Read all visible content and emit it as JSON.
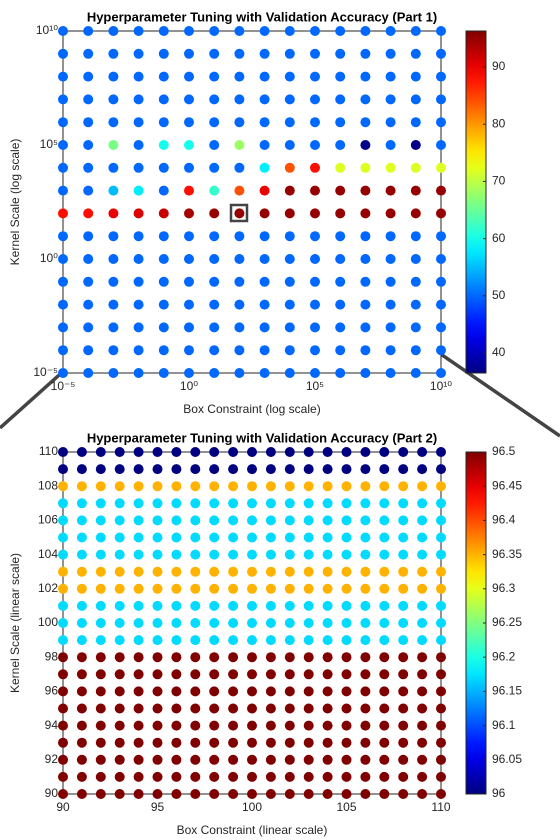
{
  "chart_data": [
    {
      "type": "scatter",
      "title": "Hyperparameter Tuning with Validation Accuracy (Part 1)",
      "xlabel": "Box Constraint (log scale)",
      "ylabel": "Kernel Scale (log scale)",
      "log_scale": true,
      "colormap": "jet",
      "x": [
        1e-05,
        0.0001,
        0.001,
        0.01,
        0.1,
        1,
        10,
        100,
        1000,
        10000,
        100000,
        1000000,
        10000000,
        100000000,
        1000000000,
        10000000000
      ],
      "y": [
        1e-05,
        0.0001,
        0.001,
        0.01,
        0.1,
        1,
        10,
        100,
        1000,
        10000,
        100000,
        1000000,
        10000000,
        100000000,
        1000000000,
        10000000000
      ],
      "values": [
        [
          50,
          50,
          50,
          50,
          50,
          50,
          50,
          50,
          50,
          50,
          50,
          50,
          50,
          50,
          50,
          50
        ],
        [
          50,
          50,
          50,
          50,
          50,
          50,
          50,
          50,
          50,
          50,
          50,
          50,
          50,
          50,
          50,
          50
        ],
        [
          50,
          50,
          50,
          50,
          50,
          50,
          50,
          50,
          50,
          50,
          50,
          50,
          50,
          50,
          50,
          50
        ],
        [
          50,
          50,
          50,
          50,
          50,
          50,
          50,
          50,
          50,
          50,
          50,
          50,
          50,
          50,
          50,
          50
        ],
        [
          50,
          50,
          50,
          50,
          50,
          50,
          50,
          50,
          50,
          50,
          50,
          50,
          50,
          50,
          50,
          50
        ],
        [
          50,
          50,
          50,
          50,
          50,
          50,
          50,
          50,
          50,
          50,
          50,
          50,
          50,
          50,
          50,
          50
        ],
        [
          50,
          50,
          50,
          50,
          50,
          50,
          50,
          50,
          50,
          50,
          50,
          50,
          50,
          50,
          50,
          50
        ],
        [
          88,
          88,
          90,
          91,
          92,
          94,
          95,
          95,
          95,
          95,
          95,
          95,
          95,
          95,
          95,
          95
        ],
        [
          50,
          50,
          55,
          58,
          50,
          88,
          62,
          84,
          90,
          95,
          95,
          95,
          95,
          95,
          95,
          95
        ],
        [
          50,
          50,
          50,
          50,
          50,
          50,
          50,
          50,
          58,
          84,
          88,
          72,
          72,
          72,
          72,
          72
        ],
        [
          50,
          50,
          66,
          50,
          60,
          60,
          50,
          68,
          50,
          50,
          50,
          50,
          37,
          50,
          37,
          50
        ],
        [
          50,
          50,
          50,
          50,
          50,
          50,
          50,
          50,
          50,
          50,
          50,
          50,
          50,
          50,
          50,
          50
        ],
        [
          50,
          50,
          50,
          50,
          50,
          50,
          50,
          50,
          50,
          50,
          50,
          50,
          50,
          50,
          50,
          50
        ],
        [
          50,
          50,
          50,
          50,
          50,
          50,
          50,
          50,
          50,
          50,
          50,
          50,
          50,
          50,
          50,
          50
        ],
        [
          50,
          50,
          50,
          50,
          50,
          50,
          50,
          50,
          50,
          50,
          50,
          50,
          50,
          50,
          50,
          50
        ],
        [
          50,
          50,
          50,
          50,
          50,
          50,
          50,
          50,
          50,
          50,
          50,
          50,
          50,
          50,
          50,
          50
        ]
      ],
      "xlim": [
        1e-05,
        10000000000
      ],
      "ylim": [
        1e-05,
        10000000000
      ],
      "xticks": [
        {
          "value": 1e-05,
          "label": "10⁻⁵"
        },
        {
          "value": 1,
          "label": "10⁰"
        },
        {
          "value": 100000,
          "label": "10⁵"
        },
        {
          "value": 10000000000,
          "label": "10¹⁰"
        }
      ],
      "yticks": [
        {
          "value": 1e-05,
          "label": "10⁻⁵"
        },
        {
          "value": 1,
          "label": "10⁰"
        },
        {
          "value": 100000,
          "label": "10⁵"
        },
        {
          "value": 10000000000,
          "label": "10¹⁰"
        }
      ],
      "clim": [
        36.5,
        96.3
      ],
      "cticks": [
        40,
        50,
        60,
        70,
        80,
        90
      ]
    },
    {
      "type": "scatter",
      "title": "Hyperparameter Tuning with Validation Accuracy (Part 2)",
      "xlabel": "Box Constraint (linear scale)",
      "ylabel": "Kernel Scale (linear scale)",
      "log_scale": false,
      "colormap": "jet",
      "x": [
        90,
        91,
        92,
        93,
        94,
        95,
        96,
        97,
        98,
        99,
        100,
        101,
        102,
        103,
        104,
        105,
        106,
        107,
        108,
        109,
        110
      ],
      "y": [
        90,
        91,
        92,
        93,
        94,
        95,
        96,
        97,
        98,
        99,
        100,
        101,
        102,
        103,
        104,
        105,
        106,
        107,
        108,
        109,
        110
      ],
      "values": [
        [
          96.5,
          96.5,
          96.5,
          96.5,
          96.5,
          96.5,
          96.5,
          96.5,
          96.5,
          96.5,
          96.5,
          96.5,
          96.5,
          96.5,
          96.5,
          96.5,
          96.5,
          96.5,
          96.5,
          96.5,
          96.5
        ],
        [
          96.5,
          96.5,
          96.5,
          96.5,
          96.5,
          96.5,
          96.5,
          96.5,
          96.5,
          96.5,
          96.5,
          96.5,
          96.5,
          96.5,
          96.5,
          96.5,
          96.5,
          96.5,
          96.5,
          96.5,
          96.5
        ],
        [
          96.5,
          96.5,
          96.5,
          96.5,
          96.5,
          96.5,
          96.5,
          96.5,
          96.5,
          96.5,
          96.5,
          96.5,
          96.5,
          96.5,
          96.5,
          96.5,
          96.5,
          96.5,
          96.5,
          96.5,
          96.5
        ],
        [
          96.5,
          96.5,
          96.5,
          96.5,
          96.5,
          96.5,
          96.5,
          96.5,
          96.5,
          96.5,
          96.5,
          96.5,
          96.5,
          96.5,
          96.5,
          96.5,
          96.5,
          96.5,
          96.5,
          96.5,
          96.5
        ],
        [
          96.5,
          96.5,
          96.5,
          96.5,
          96.5,
          96.5,
          96.5,
          96.5,
          96.5,
          96.5,
          96.5,
          96.5,
          96.5,
          96.5,
          96.5,
          96.5,
          96.5,
          96.5,
          96.5,
          96.5,
          96.5
        ],
        [
          96.5,
          96.5,
          96.5,
          96.5,
          96.5,
          96.5,
          96.5,
          96.5,
          96.5,
          96.5,
          96.5,
          96.5,
          96.5,
          96.5,
          96.5,
          96.5,
          96.5,
          96.5,
          96.5,
          96.5,
          96.5
        ],
        [
          96.5,
          96.5,
          96.5,
          96.5,
          96.5,
          96.5,
          96.5,
          96.5,
          96.5,
          96.5,
          96.5,
          96.5,
          96.5,
          96.5,
          96.5,
          96.5,
          96.5,
          96.5,
          96.5,
          96.5,
          96.5
        ],
        [
          96.5,
          96.5,
          96.5,
          96.5,
          96.5,
          96.5,
          96.5,
          96.5,
          96.5,
          96.5,
          96.5,
          96.5,
          96.5,
          96.5,
          96.5,
          96.5,
          96.5,
          96.5,
          96.5,
          96.5,
          96.5
        ],
        [
          96.5,
          96.5,
          96.5,
          96.5,
          96.5,
          96.5,
          96.5,
          96.5,
          96.5,
          96.5,
          96.5,
          96.5,
          96.5,
          96.5,
          96.5,
          96.5,
          96.5,
          96.5,
          96.5,
          96.5,
          96.5
        ],
        [
          96.17,
          96.17,
          96.17,
          96.17,
          96.17,
          96.17,
          96.17,
          96.17,
          96.17,
          96.17,
          96.17,
          96.17,
          96.17,
          96.17,
          96.17,
          96.17,
          96.17,
          96.17,
          96.17,
          96.17,
          96.17
        ],
        [
          96.17,
          96.17,
          96.17,
          96.17,
          96.17,
          96.17,
          96.17,
          96.17,
          96.17,
          96.17,
          96.17,
          96.17,
          96.17,
          96.17,
          96.17,
          96.17,
          96.17,
          96.17,
          96.17,
          96.17,
          96.17
        ],
        [
          96.17,
          96.17,
          96.17,
          96.17,
          96.17,
          96.17,
          96.17,
          96.17,
          96.17,
          96.17,
          96.17,
          96.17,
          96.17,
          96.17,
          96.17,
          96.17,
          96.17,
          96.17,
          96.17,
          96.17,
          96.17
        ],
        [
          96.35,
          96.35,
          96.35,
          96.35,
          96.35,
          96.35,
          96.35,
          96.35,
          96.35,
          96.35,
          96.35,
          96.35,
          96.35,
          96.35,
          96.35,
          96.35,
          96.35,
          96.35,
          96.35,
          96.35,
          96.35
        ],
        [
          96.35,
          96.35,
          96.35,
          96.35,
          96.35,
          96.35,
          96.35,
          96.35,
          96.35,
          96.35,
          96.35,
          96.35,
          96.35,
          96.35,
          96.35,
          96.35,
          96.35,
          96.35,
          96.35,
          96.35,
          96.35
        ],
        [
          96.17,
          96.17,
          96.17,
          96.17,
          96.17,
          96.17,
          96.17,
          96.17,
          96.17,
          96.17,
          96.17,
          96.17,
          96.17,
          96.17,
          96.17,
          96.17,
          96.17,
          96.17,
          96.17,
          96.17,
          96.17
        ],
        [
          96.17,
          96.17,
          96.17,
          96.17,
          96.17,
          96.17,
          96.17,
          96.17,
          96.17,
          96.17,
          96.17,
          96.17,
          96.17,
          96.17,
          96.17,
          96.17,
          96.17,
          96.17,
          96.17,
          96.17,
          96.17
        ],
        [
          96.17,
          96.17,
          96.17,
          96.17,
          96.17,
          96.17,
          96.17,
          96.17,
          96.17,
          96.17,
          96.17,
          96.17,
          96.17,
          96.17,
          96.17,
          96.17,
          96.17,
          96.17,
          96.17,
          96.17,
          96.17
        ],
        [
          96.17,
          96.17,
          96.17,
          96.17,
          96.17,
          96.17,
          96.17,
          96.17,
          96.17,
          96.17,
          96.17,
          96.17,
          96.17,
          96.17,
          96.17,
          96.17,
          96.17,
          96.17,
          96.17,
          96.17,
          96.17
        ],
        [
          96.35,
          96.35,
          96.35,
          96.35,
          96.35,
          96.35,
          96.35,
          96.35,
          96.35,
          96.35,
          96.35,
          96.35,
          96.35,
          96.35,
          96.35,
          96.35,
          96.35,
          96.35,
          96.35,
          96.35,
          96.35
        ],
        [
          96,
          96,
          96,
          96,
          96,
          96,
          96,
          96,
          96,
          96,
          96,
          96,
          96,
          96,
          96,
          96,
          96,
          96,
          96,
          96,
          96
        ],
        [
          96,
          96,
          96,
          96,
          96,
          96,
          96,
          96,
          96,
          96,
          96,
          96,
          96,
          96,
          96,
          96,
          96,
          96,
          96,
          96,
          96
        ]
      ],
      "xlim": [
        90,
        110
      ],
      "ylim": [
        90,
        110
      ],
      "xticks": [
        90,
        95,
        100,
        105,
        110
      ],
      "yticks": [
        90,
        92,
        94,
        96,
        98,
        100,
        102,
        104,
        106,
        108,
        110
      ],
      "clim": [
        96,
        96.5
      ],
      "cticks": [
        96,
        96.05,
        96.1,
        96.15,
        96.2,
        96.25,
        96.3,
        96.35,
        96.4,
        96.45,
        96.5
      ]
    }
  ]
}
